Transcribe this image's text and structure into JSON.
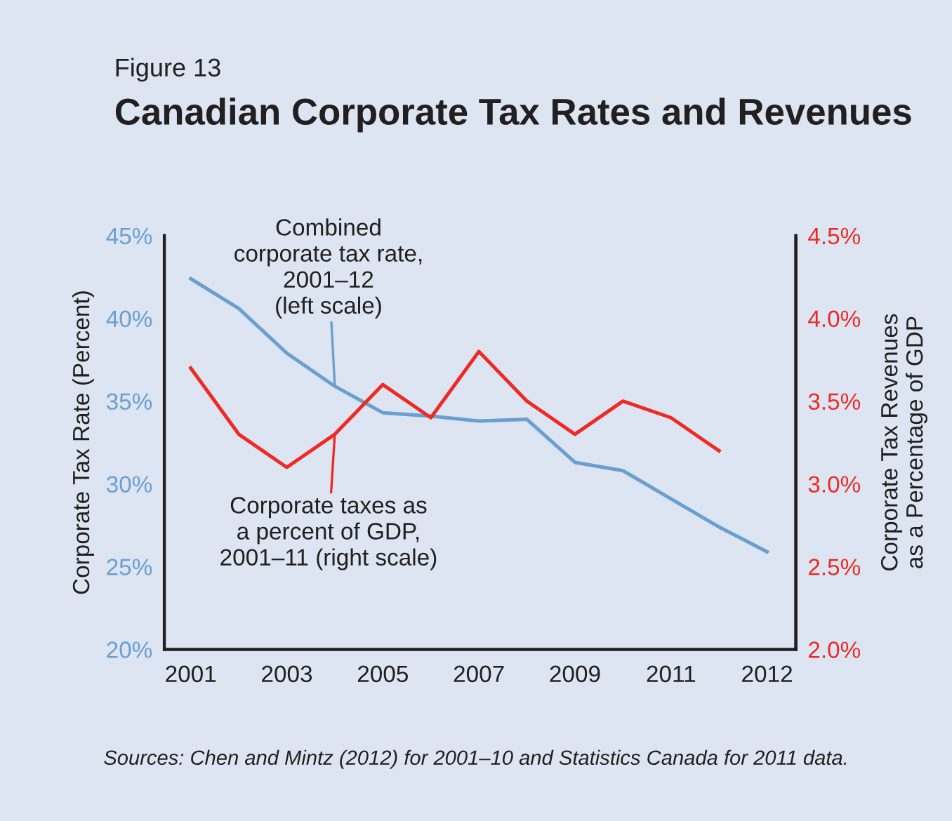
{
  "chart_data": {
    "type": "line",
    "subtitle": "Figure 13",
    "title": "Canadian Corporate Tax Rates and Revenues",
    "ylabel": "Corporate Tax Rate (Percent)",
    "y2label": "Corporate Tax Revenues\nas a Percentage of GDP",
    "categories": [
      "2001",
      null,
      "2003",
      null,
      "2005",
      null,
      "2007",
      null,
      "2009",
      null,
      "2011",
      null,
      "2012"
    ],
    "series": [
      {
        "name": "Combined\ncorporate tax rate,\n2001–12\n(left scale)",
        "color": "#6a9fd0",
        "values": [
          42.4,
          40.6,
          37.9,
          35.9,
          34.3,
          34.1,
          33.8,
          33.9,
          31.3,
          30.8,
          29.1,
          27.4,
          25.9
        ]
      },
      {
        "name": "Corporate taxes as\na percent of GDP,\n2001–11 (right scale)",
        "color": "#ee2a24",
        "axis": "y2",
        "values": [
          3.7,
          3.3,
          3.1,
          3.3,
          3.6,
          3.4,
          3.8,
          3.5,
          3.3,
          3.5,
          3.4,
          3.2,
          null
        ]
      }
    ],
    "ylim": [
      20,
      45
    ],
    "yticks": [
      {
        "value": 20,
        "label": "20%"
      },
      {
        "value": 25,
        "label": "25%"
      },
      {
        "value": 30,
        "label": "30%"
      },
      {
        "value": 35,
        "label": "35%"
      },
      {
        "value": 40,
        "label": "40%"
      },
      {
        "value": 45,
        "label": "45%"
      }
    ],
    "y2lim": [
      2.0,
      4.5
    ],
    "y2ticks": [
      {
        "value": 2.0,
        "label": "2.0%"
      },
      {
        "value": 2.5,
        "label": "2.5%"
      },
      {
        "value": 3.0,
        "label": "3.0%"
      },
      {
        "value": 3.5,
        "label": "3.5%"
      },
      {
        "value": 4.0,
        "label": "4.0%"
      },
      {
        "value": 4.5,
        "label": "4.5%"
      }
    ],
    "grid": false,
    "legend": false,
    "annotations": [
      "Sources: Chen and Mintz (2012) for 2001–10 and Statistics Canada for 2011 data."
    ]
  }
}
